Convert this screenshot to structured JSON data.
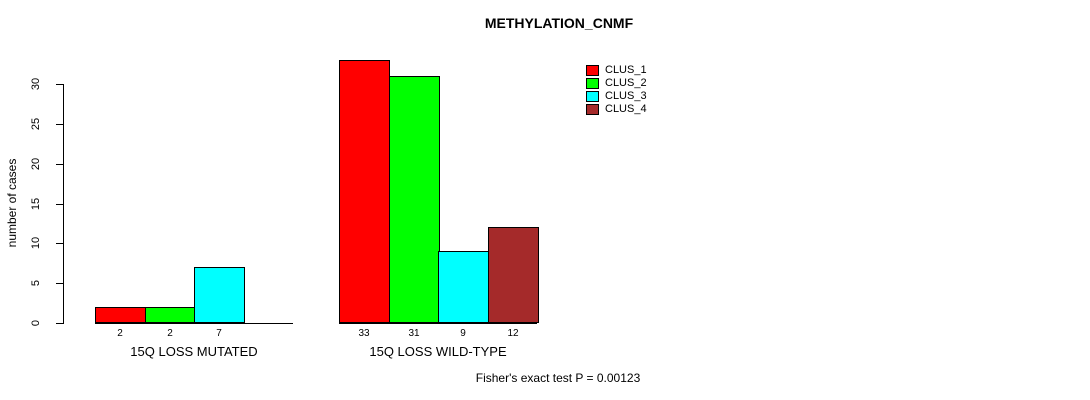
{
  "chart_data": {
    "type": "bar",
    "title": "METHYLATION_CNMF",
    "ylabel": "number of cases",
    "ylim": [
      0,
      33
    ],
    "yticks": [
      0,
      5,
      10,
      15,
      20,
      25,
      30
    ],
    "grid": false,
    "legend_position": "top-right",
    "categories": [
      "15Q LOSS MUTATED",
      "15Q LOSS WILD-TYPE"
    ],
    "series": [
      {
        "name": "CLUS_1",
        "color": "#FF0000",
        "values": [
          2,
          33
        ]
      },
      {
        "name": "CLUS_2",
        "color": "#00FF00",
        "values": [
          2,
          31
        ]
      },
      {
        "name": "CLUS_3",
        "color": "#00FFFF",
        "values": [
          7,
          9
        ]
      },
      {
        "name": "CLUS_4",
        "color": "#A52A2A",
        "values": [
          0,
          12
        ]
      }
    ],
    "bar_value_labels": [
      [
        "2",
        "2",
        "7",
        ""
      ],
      [
        "33",
        "31",
        "9",
        "12"
      ]
    ],
    "annotation": "Fisher's exact test P = 0.00123"
  }
}
